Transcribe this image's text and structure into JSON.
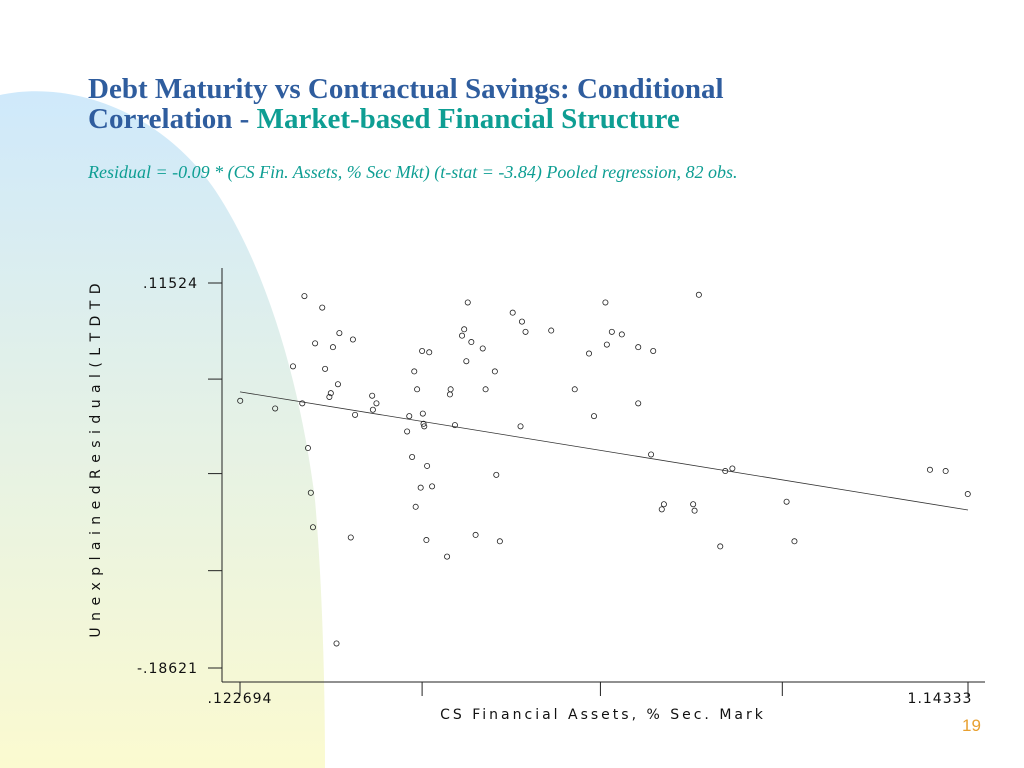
{
  "slide": {
    "title_line1": "Debt Maturity vs Contractual Savings:  Conditional",
    "title_line2_prefix": "Correlation - ",
    "title_line2_accent": "Market-based Financial Structure",
    "subtitle": "Residual = -0.09 * (CS Fin. Assets, % Sec Mkt) (t-stat = -3.84) Pooled regression, 82 obs.",
    "page_number": "19"
  },
  "colors": {
    "title": "#2f5d9e",
    "accent": "#0e9e93",
    "page_number": "#e8a030",
    "decor_blue": "#cfe9fb",
    "decor_yellow": "#fbfad0"
  },
  "chart_data": {
    "type": "scatter",
    "title": "",
    "xlabel": "CS Financial Assets, % Sec. Mark",
    "ylabel": "U n e x p l a i n e d   R e s i d u a l ( L T D T D",
    "x_tick_labels": [
      ".122694",
      "1.14333"
    ],
    "y_tick_labels": [
      ".11524",
      "-.18621"
    ],
    "xlim": [
      0.122694,
      1.14333
    ],
    "ylim": [
      -0.18621,
      0.11524
    ],
    "x_minor_ticks": [
      0.378,
      0.628,
      0.883
    ],
    "y_minor_ticks": [
      0.04,
      -0.034,
      -0.11
    ],
    "fit_line": {
      "x": [
        0.122694,
        1.14333
      ],
      "y": [
        0.03,
        -0.0625
      ]
    },
    "points": [
      {
        "x": 0.123,
        "y": 0.023
      },
      {
        "x": 0.172,
        "y": 0.017
      },
      {
        "x": 0.197,
        "y": 0.05
      },
      {
        "x": 0.21,
        "y": 0.021
      },
      {
        "x": 0.213,
        "y": 0.105
      },
      {
        "x": 0.218,
        "y": -0.014
      },
      {
        "x": 0.222,
        "y": -0.049
      },
      {
        "x": 0.225,
        "y": -0.076
      },
      {
        "x": 0.228,
        "y": 0.068
      },
      {
        "x": 0.238,
        "y": 0.096
      },
      {
        "x": 0.242,
        "y": 0.048
      },
      {
        "x": 0.248,
        "y": 0.026
      },
      {
        "x": 0.25,
        "y": 0.029
      },
      {
        "x": 0.253,
        "y": 0.065
      },
      {
        "x": 0.258,
        "y": -0.167
      },
      {
        "x": 0.26,
        "y": 0.036
      },
      {
        "x": 0.262,
        "y": 0.076
      },
      {
        "x": 0.278,
        "y": -0.084
      },
      {
        "x": 0.281,
        "y": 0.071
      },
      {
        "x": 0.284,
        "y": 0.012
      },
      {
        "x": 0.308,
        "y": 0.027
      },
      {
        "x": 0.309,
        "y": 0.016
      },
      {
        "x": 0.314,
        "y": 0.021
      },
      {
        "x": 0.357,
        "y": -0.001
      },
      {
        "x": 0.36,
        "y": 0.011
      },
      {
        "x": 0.364,
        "y": -0.021
      },
      {
        "x": 0.367,
        "y": 0.046
      },
      {
        "x": 0.369,
        "y": -0.06
      },
      {
        "x": 0.371,
        "y": 0.032
      },
      {
        "x": 0.376,
        "y": -0.045
      },
      {
        "x": 0.378,
        "y": 0.062
      },
      {
        "x": 0.379,
        "y": 0.013
      },
      {
        "x": 0.38,
        "y": 0.005
      },
      {
        "x": 0.381,
        "y": 0.003
      },
      {
        "x": 0.384,
        "y": -0.086
      },
      {
        "x": 0.385,
        "y": -0.028
      },
      {
        "x": 0.388,
        "y": 0.061
      },
      {
        "x": 0.392,
        "y": -0.044
      },
      {
        "x": 0.413,
        "y": -0.099
      },
      {
        "x": 0.417,
        "y": 0.028
      },
      {
        "x": 0.418,
        "y": 0.032
      },
      {
        "x": 0.424,
        "y": 0.004
      },
      {
        "x": 0.434,
        "y": 0.074
      },
      {
        "x": 0.437,
        "y": 0.079
      },
      {
        "x": 0.44,
        "y": 0.054
      },
      {
        "x": 0.442,
        "y": 0.1
      },
      {
        "x": 0.447,
        "y": 0.069
      },
      {
        "x": 0.453,
        "y": -0.082
      },
      {
        "x": 0.463,
        "y": 0.064
      },
      {
        "x": 0.467,
        "y": 0.032
      },
      {
        "x": 0.48,
        "y": 0.046
      },
      {
        "x": 0.482,
        "y": -0.035
      },
      {
        "x": 0.487,
        "y": -0.087
      },
      {
        "x": 0.505,
        "y": 0.092
      },
      {
        "x": 0.516,
        "y": 0.003
      },
      {
        "x": 0.518,
        "y": 0.085
      },
      {
        "x": 0.523,
        "y": 0.077
      },
      {
        "x": 0.559,
        "y": 0.078
      },
      {
        "x": 0.592,
        "y": 0.032
      },
      {
        "x": 0.612,
        "y": 0.06
      },
      {
        "x": 0.619,
        "y": 0.011
      },
      {
        "x": 0.635,
        "y": 0.1
      },
      {
        "x": 0.637,
        "y": 0.067
      },
      {
        "x": 0.644,
        "y": 0.077
      },
      {
        "x": 0.658,
        "y": 0.075
      },
      {
        "x": 0.681,
        "y": 0.065
      },
      {
        "x": 0.681,
        "y": 0.021
      },
      {
        "x": 0.699,
        "y": -0.019
      },
      {
        "x": 0.702,
        "y": 0.062
      },
      {
        "x": 0.714,
        "y": -0.062
      },
      {
        "x": 0.717,
        "y": -0.058
      },
      {
        "x": 0.758,
        "y": -0.058
      },
      {
        "x": 0.76,
        "y": -0.063
      },
      {
        "x": 0.766,
        "y": 0.106
      },
      {
        "x": 0.796,
        "y": -0.091
      },
      {
        "x": 0.803,
        "y": -0.032
      },
      {
        "x": 0.813,
        "y": -0.03
      },
      {
        "x": 0.889,
        "y": -0.056
      },
      {
        "x": 0.9,
        "y": -0.087
      },
      {
        "x": 1.09,
        "y": -0.031
      },
      {
        "x": 1.112,
        "y": -0.032
      },
      {
        "x": 1.143,
        "y": -0.05
      }
    ]
  }
}
